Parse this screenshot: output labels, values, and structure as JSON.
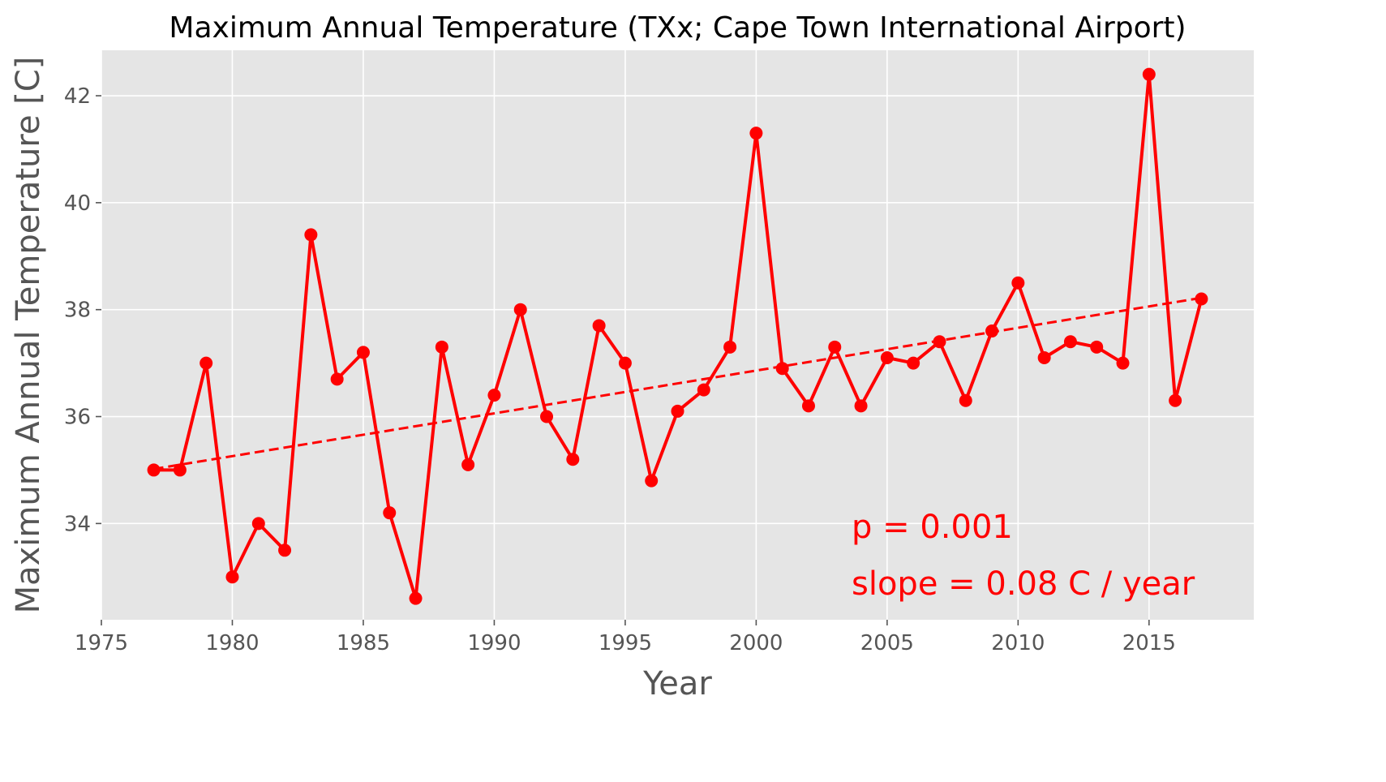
{
  "chart_data": {
    "type": "line",
    "title": "Maximum Annual Temperature (TXx; Cape Town International Airport)",
    "xlabel": "Year",
    "ylabel": "Maximum Annual Temperature [C]",
    "xlim": [
      1975,
      2019
    ],
    "ylim": [
      32.2,
      42.85
    ],
    "xticks": [
      1975,
      1980,
      1985,
      1990,
      1995,
      2000,
      2005,
      2010,
      2015
    ],
    "yticks": [
      34,
      36,
      38,
      40,
      42
    ],
    "grid": true,
    "background": "#e5e5e5",
    "grid_color": "#ffffff",
    "series_color": "#ff0000",
    "series": [
      {
        "x": [
          1977,
          1978,
          1979,
          1980,
          1981,
          1982,
          1983,
          1984,
          1985,
          1986,
          1987,
          1988,
          1989,
          1990,
          1991,
          1992,
          1993,
          1994,
          1995,
          1996,
          1997,
          1998,
          1999,
          2000,
          2001,
          2002,
          2003,
          2004,
          2005,
          2006,
          2007,
          2008,
          2009,
          2010,
          2011,
          2012,
          2013,
          2014,
          2015,
          2016,
          2017
        ],
        "values": [
          35.0,
          35.0,
          37.0,
          33.0,
          34.0,
          33.5,
          39.4,
          36.7,
          37.2,
          34.2,
          32.6,
          37.3,
          35.1,
          36.4,
          38.0,
          36.0,
          35.2,
          37.7,
          37.0,
          34.8,
          36.1,
          36.5,
          37.3,
          41.3,
          36.9,
          36.2,
          37.3,
          36.2,
          37.1,
          37.0,
          37.4,
          36.3,
          37.6,
          38.5,
          37.1,
          37.4,
          37.3,
          37.0,
          42.4,
          36.3,
          38.2
        ]
      }
    ],
    "trend": {
      "x": [
        1977,
        2017
      ],
      "y": [
        35.02,
        38.22
      ]
    },
    "annotations": [
      "p = 0.001",
      "slope = 0.08 C / year"
    ]
  }
}
